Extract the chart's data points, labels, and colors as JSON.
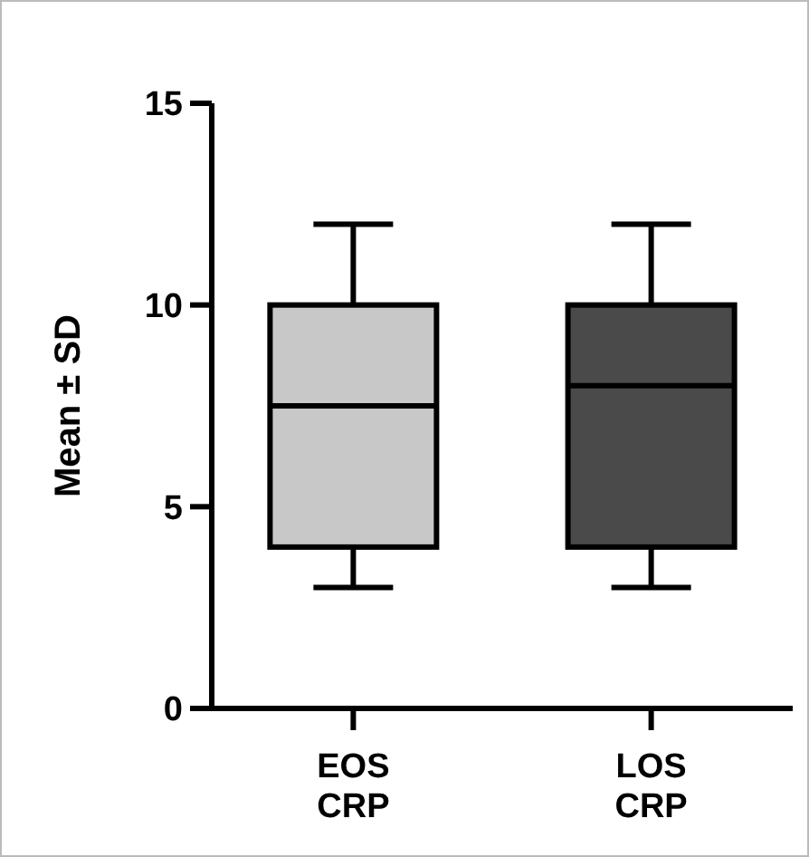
{
  "chart_data": {
    "type": "box",
    "ylabel": "Mean ± SD",
    "categories": [
      "EOS\nCRP",
      "LOS\nCRP"
    ],
    "colors": [
      "#c8c8c8",
      "#4a4a4a"
    ],
    "boxes": [
      {
        "low": 3,
        "q1": 4,
        "median": 7.5,
        "q3": 10,
        "high": 12
      },
      {
        "low": 3,
        "q1": 4,
        "median": 8,
        "q3": 10,
        "high": 12
      }
    ],
    "ylim": [
      0,
      15
    ],
    "yticks": [
      0,
      5,
      10,
      15
    ],
    "grid": false
  }
}
